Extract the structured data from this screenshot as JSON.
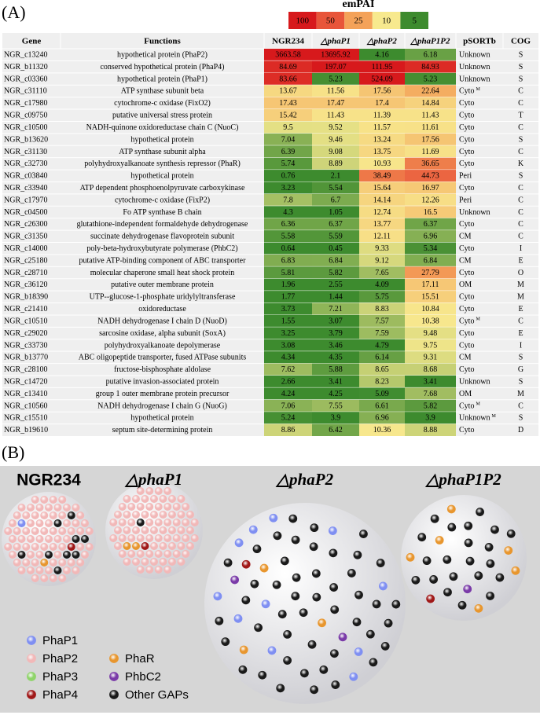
{
  "panel_a": {
    "label": "(A)",
    "legend": {
      "title": "emPAI",
      "stops": [
        100,
        50,
        25,
        10,
        5
      ],
      "colors": [
        "#d7191c",
        "#e8553a",
        "#f4a259",
        "#f7e98e",
        "#3d8b2e"
      ]
    },
    "table": {
      "headers": [
        "Gene",
        "Functions",
        "NGR234",
        "△phaP1",
        "△phaP2",
        "△phaP1P2",
        "pSORTb",
        "COG"
      ],
      "rows": [
        {
          "gene": "NGR_c13240",
          "function": "hypothetical protein (PhaP2)",
          "empai": [
            3663.58,
            13695.92,
            4.16,
            6.18
          ],
          "psortb": "Unknown",
          "cog": "S"
        },
        {
          "gene": "NGR_b11320",
          "function": "conserved hypothetical protein (PhaP4)",
          "empai": [
            84.69,
            197.07,
            111.95,
            84.93
          ],
          "psortb": "Unknown",
          "cog": "S"
        },
        {
          "gene": "NGR_c03360",
          "function": "hypothetical protein (PhaP1)",
          "empai": [
            83.66,
            5.23,
            524.09,
            5.23
          ],
          "psortb": "Unknown",
          "cog": "S"
        },
        {
          "gene": "NGR_c31110",
          "function": "ATP synthase subunit beta",
          "empai": [
            13.67,
            11.56,
            17.56,
            22.64
          ],
          "psortb": "Cyto",
          "psortb_note": "M",
          "cog": "C"
        },
        {
          "gene": "NGR_c17980",
          "function": "cytochrome-c oxidase (FixO2)",
          "empai": [
            17.43,
            17.47,
            17.4,
            14.84
          ],
          "psortb": "Cyto",
          "cog": "C"
        },
        {
          "gene": "NGR_c09750",
          "function": "putative universal stress protein",
          "empai": [
            15.42,
            11.43,
            11.39,
            11.43
          ],
          "psortb": "Cyto",
          "cog": "T"
        },
        {
          "gene": "NGR_c10500",
          "function": "NADH-quinone oxidoreductase chain C  (NuoC)",
          "empai": [
            9.5,
            9.52,
            11.57,
            11.61
          ],
          "psortb": "Cyto",
          "cog": "C"
        },
        {
          "gene": "NGR_b13620",
          "function": "hypothetical protein",
          "empai": [
            7.04,
            9.46,
            13.24,
            17.56
          ],
          "psortb": "Cyto",
          "cog": "S"
        },
        {
          "gene": "NGR_c31130",
          "function": "ATP synthase subunit alpha",
          "empai": [
            6.39,
            9.08,
            13.75,
            11.69
          ],
          "psortb": "Cyto",
          "cog": "C"
        },
        {
          "gene": "NGR_c32730",
          "function": "polyhydroxyalkanoate synthesis repressor (PhaR)",
          "empai": [
            5.74,
            8.89,
            10.93,
            36.65
          ],
          "psortb": "Cyto",
          "cog": "K"
        },
        {
          "gene": "NGR_c03840",
          "function": "hypothetical protein",
          "empai": [
            0.76,
            2.1,
            38.49,
            44.73
          ],
          "psortb": "Peri",
          "cog": "S"
        },
        {
          "gene": "NGR_c33940",
          "function": "ATP dependent phosphoenolpyruvate carboxykinase",
          "empai": [
            3.23,
            5.54,
            15.64,
            16.97
          ],
          "psortb": "Cyto",
          "cog": "C"
        },
        {
          "gene": "NGR_c17970",
          "function": "cytochrome-c oxidase (FixP2)",
          "empai": [
            7.8,
            6.7,
            14.14,
            12.26
          ],
          "psortb": "Peri",
          "cog": "C"
        },
        {
          "gene": "NGR_c04500",
          "function": "Fo ATP synthase B chain",
          "empai": [
            4.3,
            1.05,
            12.74,
            16.5
          ],
          "psortb": "Unknown",
          "cog": "C"
        },
        {
          "gene": "NGR_c26300",
          "function": "glutathione-independent formaldehyde dehydrogenase",
          "empai": [
            6.36,
            6.37,
            13.77,
            6.37
          ],
          "psortb": "Cyto",
          "cog": "C"
        },
        {
          "gene": "NGR_c31350",
          "function": "succinate dehydrogenase flavoprotein subunit",
          "empai": [
            5.58,
            5.59,
            12.11,
            6.96
          ],
          "psortb": "CM",
          "cog": "C"
        },
        {
          "gene": "NGR_c14000",
          "function": "poly-beta-hydroxybutyrate polymerase (PhbC2)",
          "empai": [
            0.64,
            0.45,
            9.33,
            5.34
          ],
          "psortb": "Cyto",
          "cog": "I"
        },
        {
          "gene": "NGR_c25180",
          "function": "putative ATP-binding component of ABC transporter",
          "empai": [
            6.83,
            6.84,
            9.12,
            6.84
          ],
          "psortb": "CM",
          "cog": "E"
        },
        {
          "gene": "NGR_c28710",
          "function": "molecular chaperone small heat shock protein",
          "empai": [
            5.81,
            5.82,
            7.65,
            27.79
          ],
          "psortb": "Cyto",
          "cog": "O"
        },
        {
          "gene": "NGR_c36120",
          "function": "putative outer membrane protein",
          "empai": [
            1.96,
            2.55,
            4.09,
            17.11
          ],
          "psortb": "OM",
          "cog": "M"
        },
        {
          "gene": "NGR_b18390",
          "function": "UTP--glucose-1-phosphate uridylyltransferase",
          "empai": [
            1.77,
            1.44,
            5.75,
            15.51
          ],
          "psortb": "Cyto",
          "cog": "M"
        },
        {
          "gene": "NGR_c21410",
          "function": "oxidoreductase",
          "empai": [
            3.73,
            7.21,
            8.83,
            10.84
          ],
          "psortb": "Cyto",
          "cog": "E"
        },
        {
          "gene": "NGR_c10510",
          "function": "NADH dehydrogenase I chain D (NuoD)",
          "empai": [
            1.55,
            3.07,
            7.57,
            10.38
          ],
          "psortb": "Cyto",
          "psortb_note": "M",
          "cog": "C"
        },
        {
          "gene": "NGR_c29020",
          "function": "sarcosine oxidase, alpha subunit (SoxA)",
          "empai": [
            3.25,
            3.79,
            7.59,
            9.48
          ],
          "psortb": "Cyto",
          "cog": "E"
        },
        {
          "gene": "NGR_c33730",
          "function": "polyhydroxyalkanoate depolymerase",
          "empai": [
            3.08,
            3.46,
            4.79,
            9.75
          ],
          "psortb": "Cyto",
          "cog": "I"
        },
        {
          "gene": "NGR_b13770",
          "function": "ABC oligopeptide transporter, fused ATPase subunits",
          "empai": [
            4.34,
            4.35,
            6.14,
            9.31
          ],
          "psortb": "CM",
          "cog": "S"
        },
        {
          "gene": "NGR_c28100",
          "function": "fructose-bisphosphate aldolase",
          "empai": [
            7.62,
            5.88,
            8.65,
            8.68
          ],
          "psortb": "Cyto",
          "cog": "G"
        },
        {
          "gene": "NGR_c14720",
          "function": "putative invasion-associated protein",
          "empai": [
            2.66,
            3.41,
            8.23,
            3.41
          ],
          "psortb": "Unknown",
          "cog": "S"
        },
        {
          "gene": "NGR_c13410",
          "function": "group 1 outer membrane protein precursor",
          "empai": [
            4.24,
            4.25,
            5.09,
            7.68
          ],
          "psortb": "OM",
          "cog": "M"
        },
        {
          "gene": "NGR_c10560",
          "function": "NADH dehydrogenase I chain G (NuoG)",
          "empai": [
            7.06,
            7.55,
            6.61,
            5.82
          ],
          "psortb": "Cyto",
          "psortb_note": "M",
          "cog": "C"
        },
        {
          "gene": "NGR_c15510",
          "function": "hypothetical protein",
          "empai": [
            5.24,
            3.9,
            6.96,
            3.9
          ],
          "psortb": "Unknown",
          "psortb_note": "M",
          "cog": "S"
        },
        {
          "gene": "NGR_b19610",
          "function": "septum site-determining protein",
          "empai": [
            8.86,
            6.42,
            10.36,
            8.88
          ],
          "psortb": "Cyto",
          "cog": "D"
        }
      ]
    }
  },
  "panel_b": {
    "label": "(B)",
    "groups": [
      "NGR234",
      "△phaP1",
      "△phaP2",
      "△phaP1P2"
    ],
    "legend": [
      {
        "label": "PhaP1",
        "color": "#7f8ff2"
      },
      {
        "label": "PhaP2",
        "color": "#f2b8b8"
      },
      {
        "label": "PhaP3",
        "color": "#8fd46a"
      },
      {
        "label": "PhaP4",
        "color": "#a01818"
      },
      {
        "label": "PhaR",
        "color": "#e8962e"
      },
      {
        "label": "PhbC2",
        "color": "#7a3aa8"
      },
      {
        "label": "Other GAPs",
        "color": "#1a1a1a"
      }
    ]
  }
}
